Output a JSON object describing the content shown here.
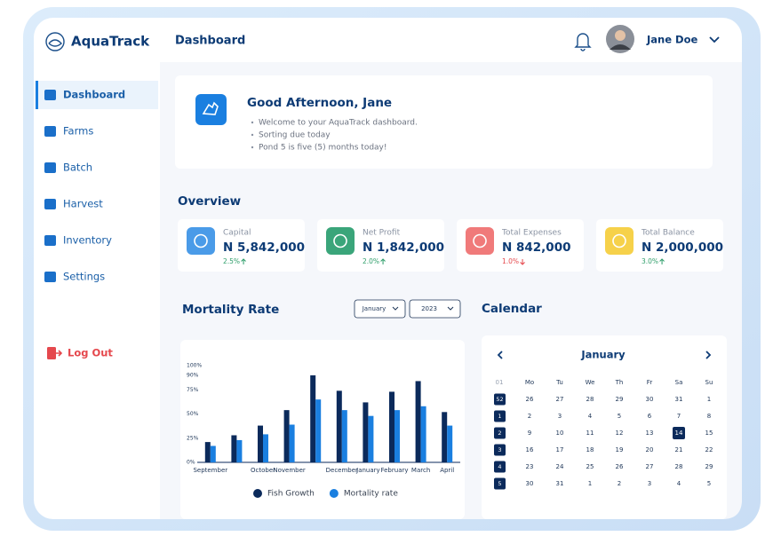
{
  "brand": "AquaTrack",
  "header": {
    "title": "Dashboard",
    "user": "Jane Doe"
  },
  "nav": {
    "items": [
      "Dashboard",
      "Farms",
      "Batch",
      "Harvest",
      "Inventory",
      "Settings"
    ],
    "active": 0,
    "logout": "Log Out"
  },
  "greeting": {
    "title": "Good Afternoon,  Jane",
    "bullets": [
      "Welcome to your AquaTrack dashboard.",
      "Sorting due today",
      "Pond 5 is five (5) months today!"
    ]
  },
  "overview": {
    "title": "Overview",
    "cards": [
      {
        "label": "Capital",
        "value": "N 5,842,000",
        "change": "2.5%",
        "trend": "up",
        "color": "#4a9be8"
      },
      {
        "label": "Net Profit",
        "value": "N 1,842,000",
        "change": "2.0%",
        "trend": "up",
        "color": "#3aa57a"
      },
      {
        "label": "Total Expenses",
        "value": "N 842,000",
        "change": "1.0%",
        "trend": "down",
        "color": "#f07a7a"
      },
      {
        "label": "Total Balance",
        "value": "N 2,000,000",
        "change": "3.0%",
        "trend": "up",
        "color": "#f6d14a"
      }
    ]
  },
  "mortality": {
    "title": "Mortality Rate",
    "filters": [
      "January",
      "2023"
    ]
  },
  "chart_data": {
    "type": "bar",
    "categories": [
      "September",
      null,
      "October",
      "November",
      null,
      "December",
      "January",
      "February",
      "March",
      "April"
    ],
    "series": [
      {
        "name": "Fish Growth",
        "color": "#0b2a5b",
        "values": [
          21,
          28,
          38,
          54,
          90,
          74,
          62,
          73,
          84,
          52
        ]
      },
      {
        "name": "Mortality rate",
        "color": "#1a7fe0",
        "values": [
          17,
          23,
          29,
          39,
          65,
          54,
          48,
          54,
          58,
          38
        ]
      }
    ],
    "ylim": [
      0,
      100
    ],
    "yticks": [
      {
        "value": 0,
        "label": "0%"
      },
      {
        "value": 25,
        "label": "25%"
      },
      {
        "value": 50,
        "label": "50%"
      },
      {
        "value": 75,
        "label": "75%"
      },
      {
        "value": 90,
        "label": "90%"
      },
      {
        "value": 100,
        "label": "100%"
      }
    ],
    "grid": false
  },
  "calendar": {
    "title": "Calendar",
    "month": "January",
    "week_header": "01",
    "weekdays": [
      "Mo",
      "Tu",
      "We",
      "Th",
      "Fr",
      "Sa",
      "Su"
    ],
    "weeks": [
      "52",
      "1",
      "2",
      "3",
      "4",
      "5"
    ],
    "days": [
      [
        "26",
        "27",
        "28",
        "29",
        "30",
        "31",
        "1"
      ],
      [
        "2",
        "3",
        "4",
        "5",
        "6",
        "7",
        "8"
      ],
      [
        "9",
        "10",
        "11",
        "12",
        "13",
        "14",
        "15"
      ],
      [
        "16",
        "17",
        "18",
        "19",
        "20",
        "21",
        "22"
      ],
      [
        "23",
        "24",
        "25",
        "26",
        "27",
        "28",
        "29"
      ],
      [
        "30",
        "31",
        "1",
        "2",
        "3",
        "4",
        "5"
      ]
    ],
    "selected_day": 14
  }
}
